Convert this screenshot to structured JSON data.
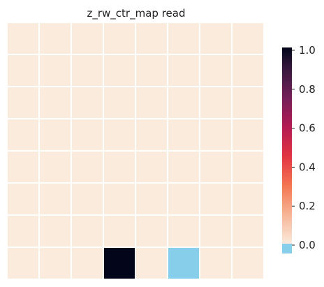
{
  "chart_data": {
    "type": "heatmap",
    "title": "z_rw_ctr_map read",
    "rows": 8,
    "cols": 8,
    "values": [
      [
        0,
        0,
        0,
        0,
        0,
        0,
        0,
        0
      ],
      [
        0,
        0,
        0,
        0,
        0,
        0,
        0,
        0
      ],
      [
        0,
        0,
        0,
        0,
        0,
        0,
        0,
        0
      ],
      [
        0,
        0,
        0,
        0,
        0,
        0,
        0,
        0
      ],
      [
        0,
        0,
        0,
        0,
        0,
        0,
        0,
        0
      ],
      [
        0,
        0,
        0,
        0,
        0,
        0,
        0,
        0
      ],
      [
        0,
        0,
        0,
        0,
        0,
        0,
        0,
        0
      ],
      [
        0,
        0,
        0,
        1,
        0,
        -1,
        0,
        0
      ]
    ],
    "colorbar": {
      "vmin": 0,
      "vmax": 1,
      "ticks": [
        "0.0",
        "0.2",
        "0.4",
        "0.6",
        "0.8",
        "1.0"
      ],
      "under_color": "#87ceeb"
    },
    "colormap": "rocket_r",
    "grid_line_color": "#ffffff"
  }
}
